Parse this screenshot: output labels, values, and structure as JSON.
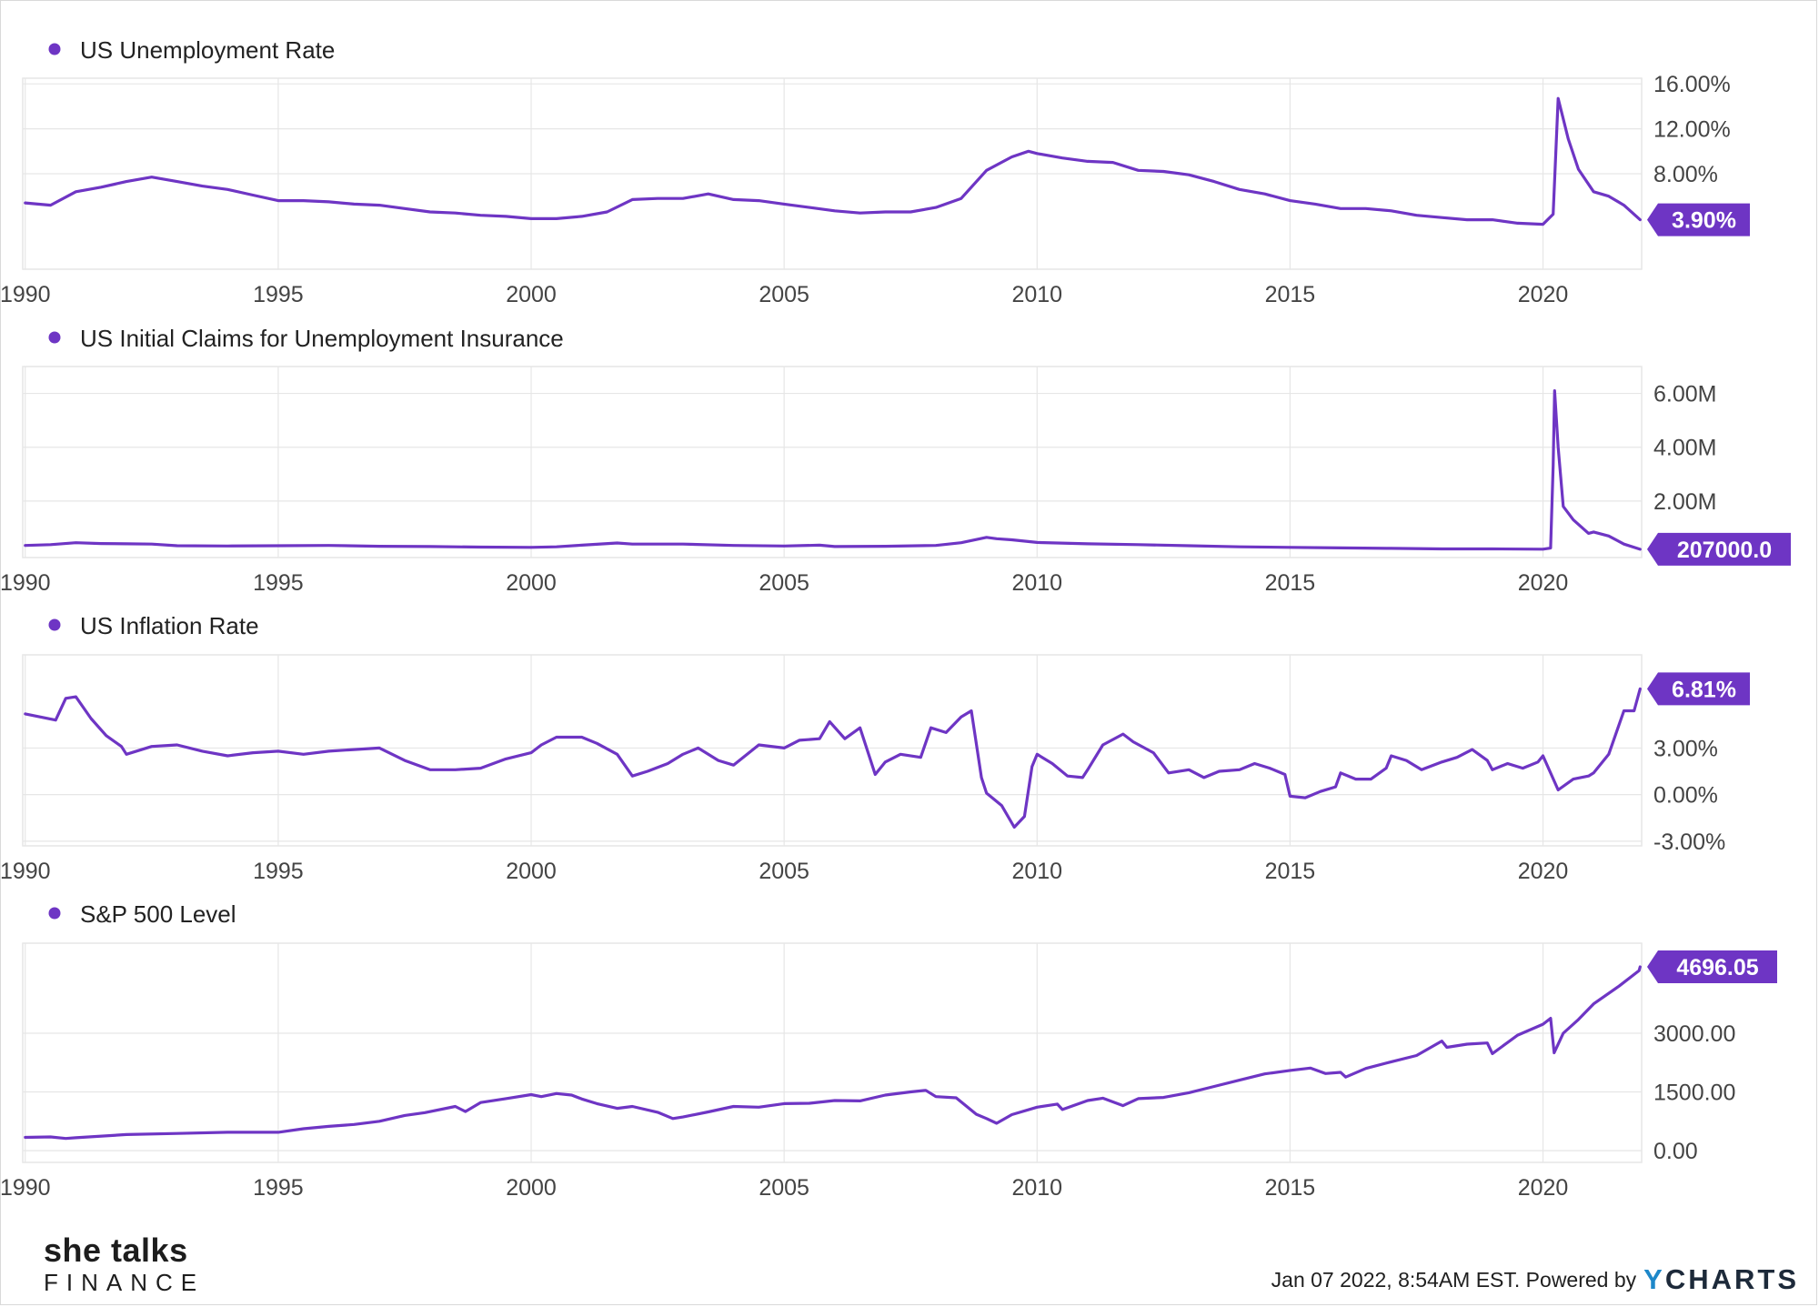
{
  "chart_data": [
    {
      "type": "line",
      "title": "US Unemployment Rate",
      "value_label": "3.90%",
      "y_ticks": [
        "16.00%",
        "12.00%",
        "8.00%"
      ],
      "y_tick_values": [
        16,
        12,
        8
      ],
      "ylim": [
        -0.5,
        16.5
      ],
      "x_ticks": [
        "1990",
        "1995",
        "2000",
        "2005",
        "2010",
        "2015",
        "2020"
      ],
      "xlim": [
        1989.95,
        2021.95
      ],
      "series": [
        {
          "name": "US Unemployment Rate",
          "x": [
            1990.0,
            1990.5,
            1991.0,
            1991.5,
            1992.0,
            1992.5,
            1993.0,
            1993.5,
            1994.0,
            1994.5,
            1995.0,
            1995.5,
            1996.0,
            1996.5,
            1997.0,
            1997.5,
            1998.0,
            1998.5,
            1999.0,
            1999.5,
            2000.0,
            2000.5,
            2001.0,
            2001.5,
            2002.0,
            2002.5,
            2003.0,
            2003.5,
            2004.0,
            2004.5,
            2005.0,
            2005.5,
            2006.0,
            2006.5,
            2007.0,
            2007.5,
            2008.0,
            2008.5,
            2009.0,
            2009.5,
            2009.83,
            2010.0,
            2010.5,
            2011.0,
            2011.5,
            2012.0,
            2012.5,
            2013.0,
            2013.5,
            2014.0,
            2014.5,
            2015.0,
            2015.5,
            2016.0,
            2016.5,
            2017.0,
            2017.5,
            2018.0,
            2018.5,
            2019.0,
            2019.5,
            2020.0,
            2020.2,
            2020.3,
            2020.5,
            2020.7,
            2021.0,
            2021.3,
            2021.6,
            2021.92
          ],
          "values": [
            5.4,
            5.2,
            6.4,
            6.8,
            7.3,
            7.7,
            7.3,
            6.9,
            6.6,
            6.1,
            5.6,
            5.6,
            5.5,
            5.3,
            5.2,
            4.9,
            4.6,
            4.5,
            4.3,
            4.2,
            4.0,
            4.0,
            4.2,
            4.6,
            5.7,
            5.8,
            5.8,
            6.2,
            5.7,
            5.6,
            5.3,
            5.0,
            4.7,
            4.5,
            4.6,
            4.6,
            5.0,
            5.8,
            8.3,
            9.5,
            10.0,
            9.8,
            9.4,
            9.1,
            9.0,
            8.3,
            8.2,
            7.9,
            7.3,
            6.6,
            6.2,
            5.6,
            5.3,
            4.9,
            4.9,
            4.7,
            4.3,
            4.1,
            3.9,
            3.9,
            3.6,
            3.5,
            4.4,
            14.7,
            11.1,
            8.4,
            6.4,
            6.0,
            5.2,
            3.9
          ]
        }
      ]
    },
    {
      "type": "line",
      "title": "US Initial Claims for Unemployment Insurance",
      "value_label": "207000.0",
      "y_ticks": [
        "6.00M",
        "4.00M",
        "2.00M"
      ],
      "y_tick_values": [
        6000000,
        4000000,
        2000000
      ],
      "ylim": [
        -100000,
        7000000
      ],
      "x_ticks": [
        "1990",
        "1995",
        "2000",
        "2005",
        "2010",
        "2015",
        "2020"
      ],
      "xlim": [
        1989.95,
        2021.95
      ],
      "series": [
        {
          "name": "US Initial Claims for Unemployment Insurance",
          "x": [
            1990.0,
            1990.5,
            1991.0,
            1991.5,
            1992.0,
            1992.5,
            1993.0,
            1994.0,
            1995.0,
            1996.0,
            1997.0,
            1998.0,
            1999.0,
            2000.0,
            2000.5,
            2001.0,
            2001.7,
            2002.0,
            2003.0,
            2004.0,
            2005.0,
            2005.7,
            2006.0,
            2007.0,
            2008.0,
            2008.5,
            2009.0,
            2009.2,
            2009.5,
            2010.0,
            2011.0,
            2012.0,
            2013.0,
            2014.0,
            2015.0,
            2016.0,
            2017.0,
            2018.0,
            2019.0,
            2020.0,
            2020.15,
            2020.2,
            2020.23,
            2020.3,
            2020.4,
            2020.6,
            2020.9,
            2021.0,
            2021.3,
            2021.6,
            2021.92
          ],
          "values": [
            350000,
            380000,
            450000,
            420000,
            410000,
            400000,
            340000,
            330000,
            340000,
            350000,
            320000,
            310000,
            290000,
            280000,
            300000,
            360000,
            440000,
            400000,
            400000,
            350000,
            330000,
            360000,
            310000,
            320000,
            350000,
            450000,
            650000,
            600000,
            560000,
            460000,
            410000,
            380000,
            340000,
            300000,
            280000,
            260000,
            240000,
            220000,
            220000,
            210000,
            250000,
            3300000,
            6100000,
            4000000,
            1800000,
            1300000,
            800000,
            850000,
            700000,
            400000,
            207000
          ]
        }
      ]
    },
    {
      "type": "line",
      "title": "US Inflation Rate",
      "value_label": "6.81%",
      "y_ticks": [
        "3.00%",
        "0.00%",
        "-3.00%"
      ],
      "y_tick_values": [
        3,
        0,
        -3
      ],
      "ylim": [
        -3.3,
        9.0
      ],
      "x_ticks": [
        "1990",
        "1995",
        "2000",
        "2005",
        "2010",
        "2015",
        "2020"
      ],
      "xlim": [
        1989.95,
        2021.95
      ],
      "series": [
        {
          "name": "US Inflation Rate",
          "x": [
            1990.0,
            1990.3,
            1990.6,
            1990.8,
            1991.0,
            1991.3,
            1991.6,
            1991.9,
            1992.0,
            1992.5,
            1993.0,
            1993.5,
            1994.0,
            1994.5,
            1995.0,
            1995.5,
            1996.0,
            1996.5,
            1997.0,
            1997.5,
            1998.0,
            1998.5,
            1999.0,
            1999.5,
            2000.0,
            2000.2,
            2000.5,
            2001.0,
            2001.3,
            2001.7,
            2002.0,
            2002.3,
            2002.7,
            2003.0,
            2003.3,
            2003.7,
            2004.0,
            2004.5,
            2005.0,
            2005.3,
            2005.7,
            2005.9,
            2006.2,
            2006.5,
            2006.8,
            2007.0,
            2007.3,
            2007.7,
            2007.9,
            2008.2,
            2008.5,
            2008.7,
            2008.9,
            2009.0,
            2009.3,
            2009.55,
            2009.75,
            2009.9,
            2010.0,
            2010.3,
            2010.6,
            2010.9,
            2011.0,
            2011.3,
            2011.7,
            2011.9,
            2012.3,
            2012.6,
            2013.0,
            2013.3,
            2013.6,
            2014.0,
            2014.3,
            2014.6,
            2014.9,
            2015.0,
            2015.3,
            2015.6,
            2015.9,
            2016.0,
            2016.3,
            2016.6,
            2016.9,
            2017.0,
            2017.3,
            2017.6,
            2018.0,
            2018.3,
            2018.6,
            2018.9,
            2019.0,
            2019.3,
            2019.6,
            2019.9,
            2020.0,
            2020.3,
            2020.6,
            2020.9,
            2021.0,
            2021.3,
            2021.6,
            2021.8,
            2021.92
          ],
          "values": [
            5.2,
            5.0,
            4.8,
            6.2,
            6.3,
            4.9,
            3.8,
            3.1,
            2.6,
            3.1,
            3.2,
            2.8,
            2.5,
            2.7,
            2.8,
            2.6,
            2.8,
            2.9,
            3.0,
            2.2,
            1.6,
            1.6,
            1.7,
            2.3,
            2.7,
            3.2,
            3.7,
            3.7,
            3.3,
            2.6,
            1.2,
            1.5,
            2.0,
            2.6,
            3.0,
            2.2,
            1.9,
            3.2,
            3.0,
            3.5,
            3.6,
            4.7,
            3.6,
            4.3,
            1.3,
            2.1,
            2.6,
            2.4,
            4.3,
            4.0,
            5.0,
            5.4,
            1.1,
            0.1,
            -0.7,
            -2.1,
            -1.4,
            1.8,
            2.6,
            2.0,
            1.2,
            1.1,
            1.6,
            3.2,
            3.9,
            3.4,
            2.7,
            1.4,
            1.6,
            1.1,
            1.5,
            1.6,
            2.0,
            1.7,
            1.3,
            -0.1,
            -0.2,
            0.2,
            0.5,
            1.4,
            1.0,
            1.0,
            1.7,
            2.5,
            2.2,
            1.6,
            2.1,
            2.4,
            2.9,
            2.2,
            1.6,
            2.0,
            1.7,
            2.1,
            2.5,
            0.3,
            1.0,
            1.2,
            1.4,
            2.6,
            5.4,
            5.4,
            6.81
          ]
        }
      ]
    },
    {
      "type": "line",
      "title": "S&P 500 Level",
      "value_label": "4696.05",
      "y_ticks": [
        "3000.00",
        "1500.00",
        "0.00"
      ],
      "y_tick_values": [
        3000,
        1500,
        0
      ],
      "ylim": [
        -300,
        5300
      ],
      "x_ticks": [
        "1990",
        "1995",
        "2000",
        "2005",
        "2010",
        "2015",
        "2020"
      ],
      "xlim": [
        1989.95,
        2021.95
      ],
      "series": [
        {
          "name": "S&P 500 Level",
          "x": [
            1990.0,
            1990.5,
            1990.8,
            1991.0,
            1992.0,
            1993.0,
            1994.0,
            1995.0,
            1995.5,
            1996.0,
            1996.5,
            1997.0,
            1997.5,
            1997.9,
            1998.5,
            1998.7,
            1999.0,
            1999.5,
            2000.0,
            2000.2,
            2000.5,
            2000.8,
            2001.0,
            2001.3,
            2001.7,
            2002.0,
            2002.5,
            2002.8,
            2003.0,
            2003.5,
            2004.0,
            2004.5,
            2005.0,
            2005.5,
            2006.0,
            2006.5,
            2007.0,
            2007.5,
            2007.8,
            2008.0,
            2008.4,
            2008.8,
            2009.0,
            2009.2,
            2009.5,
            2010.0,
            2010.4,
            2010.5,
            2011.0,
            2011.3,
            2011.7,
            2012.0,
            2012.5,
            2013.0,
            2013.5,
            2014.0,
            2014.5,
            2015.0,
            2015.4,
            2015.7,
            2016.0,
            2016.1,
            2016.5,
            2017.0,
            2017.5,
            2018.0,
            2018.1,
            2018.5,
            2018.9,
            2019.0,
            2019.5,
            2020.0,
            2020.15,
            2020.22,
            2020.4,
            2020.7,
            2021.0,
            2021.5,
            2021.9,
            2021.92
          ],
          "values": [
            340,
            350,
            310,
            330,
            410,
            440,
            470,
            470,
            560,
            620,
            670,
            750,
            900,
            970,
            1130,
            1000,
            1230,
            1330,
            1430,
            1380,
            1460,
            1420,
            1320,
            1200,
            1080,
            1130,
            980,
            820,
            860,
            990,
            1130,
            1110,
            1200,
            1210,
            1280,
            1270,
            1420,
            1500,
            1540,
            1380,
            1350,
            930,
            820,
            700,
            920,
            1110,
            1190,
            1050,
            1280,
            1340,
            1150,
            1330,
            1360,
            1480,
            1640,
            1800,
            1960,
            2050,
            2110,
            1970,
            2000,
            1880,
            2100,
            2270,
            2430,
            2800,
            2640,
            2720,
            2750,
            2480,
            2950,
            3230,
            3380,
            2500,
            3000,
            3350,
            3750,
            4200,
            4600,
            4696.05
          ]
        }
      ]
    }
  ],
  "branding": {
    "logo_main": "she talks",
    "logo_sub": "FINANCE",
    "credit_text": "Jan 07 2022, 8:54AM EST. Powered by",
    "ycharts_y": "Y",
    "ycharts_rest": "CHARTS"
  },
  "colors": {
    "series": "#6e35c4",
    "tag": "#6e35c4",
    "grid": "#e6e6e6",
    "axis_text": "#444444"
  }
}
